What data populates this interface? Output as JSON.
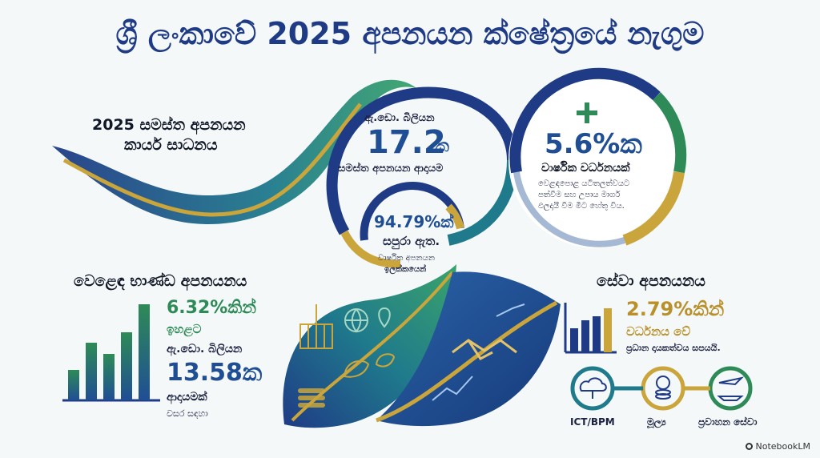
{
  "title": "ශ්‍රී ලංකාවේ 2025 අපනයන ක්ෂේත්‍රයේ නැගුම",
  "overall": {
    "heading_line1": "2025 සමස්ත අපනයන",
    "heading_line2": "කාර්ය සාධනය"
  },
  "total_revenue": {
    "unit_label": "ඇ.ඩො. බිලියන",
    "value": "17.2",
    "suffix": "ක",
    "caption": "සමස්ත අපනයන ආදායම"
  },
  "target": {
    "percent": "94.79%ක්",
    "line2": "සපුරා ඇත.",
    "caption_line1": "වාර්ෂික අපනයන",
    "caption_line2": "ඉලක්කයෙන්",
    "fraction": 0.9479
  },
  "growth": {
    "percent": "5.6%ක",
    "heading": "වාර්ෂික වර්ධනයක්",
    "desc_line1": "වෙළඳපොළ යටිතලත්වයට",
    "desc_line2": "පත්වීම සහ උපාය මාර්ග",
    "desc_line3": "ඵලදායී වීම මීට හේතු විය."
  },
  "goods": {
    "heading": "වෙළෙඳ භාණ්ඩ අපනයනය",
    "percent": "6.32%කින්",
    "line2": "ඉහළට",
    "unit_label": "ඇ.ඩො. බිලියන",
    "value": "13.58ක",
    "line5": "ආදායමක්",
    "line6": "වසර සඳහා"
  },
  "services": {
    "heading": "සේවා අපනයනය",
    "percent": "2.79%කින්",
    "line2": "වර්ධනය වේ",
    "line3": "ප්‍රධාන දායකත්වය සපයයි.",
    "icons": [
      {
        "label": "ICT/BPM",
        "icon": "cloud-network-icon"
      },
      {
        "label": "මූල්‍ය",
        "icon": "coins-gear-icon"
      },
      {
        "label": "ප්‍රවාහන සේවා",
        "icon": "plane-ship-icon"
      }
    ]
  },
  "footer": {
    "brand": "NotebookLM"
  },
  "colors": {
    "navy": "#1f3b86",
    "blue": "#1f4e94",
    "green": "#2e8b57",
    "gold": "#c9a53b",
    "teal": "#1f7a8c"
  }
}
